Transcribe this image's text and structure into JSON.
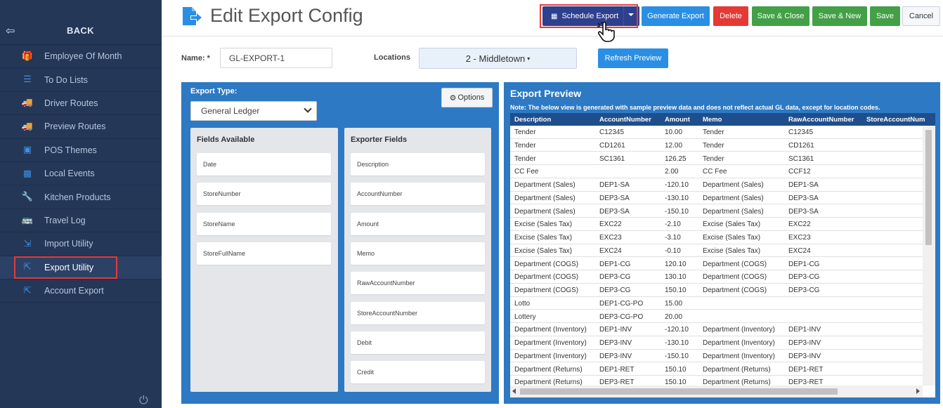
{
  "sidebar": {
    "back_label": "BACK",
    "items": [
      {
        "label": "Employee Of Month",
        "icon": "gift-icon"
      },
      {
        "label": "To Do Lists",
        "icon": "list-icon"
      },
      {
        "label": "Driver Routes",
        "icon": "truck-icon"
      },
      {
        "label": "Preview Routes",
        "icon": "truck-icon"
      },
      {
        "label": "POS Themes",
        "icon": "image-icon"
      },
      {
        "label": "Local Events",
        "icon": "calendar-icon"
      },
      {
        "label": "Kitchen Products",
        "icon": "wrench-icon"
      },
      {
        "label": "Travel Log",
        "icon": "bus-icon"
      },
      {
        "label": "Import Utility",
        "icon": "import-icon"
      },
      {
        "label": "Export Utility",
        "icon": "export-icon"
      },
      {
        "label": "Account Export",
        "icon": "export-icon"
      }
    ]
  },
  "header": {
    "title": "Edit Export Config",
    "schedule_label": "Schedule Export",
    "generate_label": "Generate Export",
    "delete_label": "Delete",
    "save_close_label": "Save & Close",
    "save_new_label": "Save & New",
    "save_label": "Save",
    "cancel_label": "Cancel"
  },
  "form": {
    "name_label": "Name: *",
    "name_value": "GL-EXPORT-1",
    "locations_label": "Locations",
    "location_value": "2 - Middletown",
    "refresh_label": "Refresh Preview"
  },
  "config": {
    "export_type_label": "Export Type:",
    "export_type_value": "General Ledger",
    "options_label": "Options",
    "fields_available_label": "Fields Available",
    "fields_available": [
      "Date",
      "StoreNumber",
      "StoreName",
      "StoreFullName"
    ],
    "exporter_fields_label": "Exporter Fields",
    "exporter_fields": [
      "Description",
      "AccountNumber",
      "Amount",
      "Memo",
      "RawAccountNumber",
      "StoreAccountNumber",
      "Debit",
      "Credit"
    ]
  },
  "preview": {
    "title": "Export Preview",
    "note_prefix": "Note:",
    "note_text": " The below view is generated with sample preview data and does not reflect actual GL data, except for location codes.",
    "columns": [
      "Description",
      "AccountNumber",
      "Amount",
      "Memo",
      "RawAccountNumber",
      "StoreAccountNum"
    ],
    "rows": [
      [
        "Tender",
        "C12345",
        "10.00",
        "Tender",
        "C12345",
        ""
      ],
      [
        "Tender",
        "CD1261",
        "12.00",
        "Tender",
        "CD1261",
        ""
      ],
      [
        "Tender",
        "SC1361",
        "126.25",
        "Tender",
        "SC1361",
        ""
      ],
      [
        "CC Fee",
        "",
        "2.00",
        "CC Fee",
        "CCF12",
        ""
      ],
      [
        "Department (Sales)",
        "DEP1-SA",
        "-120.10",
        "Department (Sales)",
        "DEP1-SA",
        ""
      ],
      [
        "Department (Sales)",
        "DEP3-SA",
        "-130.10",
        "Department (Sales)",
        "DEP3-SA",
        ""
      ],
      [
        "Department (Sales)",
        "DEP3-SA",
        "-150.10",
        "Department (Sales)",
        "DEP3-SA",
        ""
      ],
      [
        "Excise (Sales Tax)",
        "EXC22",
        "-2.10",
        "Excise (Sales Tax)",
        "EXC22",
        ""
      ],
      [
        "Excise (Sales Tax)",
        "EXC23",
        "-3.10",
        "Excise (Sales Tax)",
        "EXC23",
        ""
      ],
      [
        "Excise (Sales Tax)",
        "EXC24",
        "-0.10",
        "Excise (Sales Tax)",
        "EXC24",
        ""
      ],
      [
        "Department (COGS)",
        "DEP1-CG",
        "120.10",
        "Department (COGS)",
        "DEP1-CG",
        ""
      ],
      [
        "Department (COGS)",
        "DEP3-CG",
        "130.10",
        "Department (COGS)",
        "DEP3-CG",
        ""
      ],
      [
        "Department (COGS)",
        "DEP3-CG",
        "150.10",
        "Department (COGS)",
        "DEP3-CG",
        ""
      ],
      [
        "Lotto",
        "DEP1-CG-PO",
        "15.00",
        "",
        "",
        ""
      ],
      [
        "Lottery",
        "DEP3-CG-PO",
        "20.00",
        "",
        "",
        ""
      ],
      [
        "Department (Inventory)",
        "DEP1-INV",
        "-120.10",
        "Department (Inventory)",
        "DEP1-INV",
        ""
      ],
      [
        "Department (Inventory)",
        "DEP3-INV",
        "-130.10",
        "Department (Inventory)",
        "DEP3-INV",
        ""
      ],
      [
        "Department (Inventory)",
        "DEP3-INV",
        "-150.10",
        "Department (Inventory)",
        "DEP3-INV",
        ""
      ],
      [
        "Department (Returns)",
        "DEP1-RET",
        "150.10",
        "Department (Returns)",
        "DEP1-RET",
        ""
      ],
      [
        "Department (Returns)",
        "DEP3-RET",
        "150.10",
        "Department (Returns)",
        "DEP3-RET",
        ""
      ]
    ]
  },
  "colors": {
    "sidebar_bg": "#243757",
    "accent_blue": "#2a8fe4",
    "schedule_bg": "#2e3f8d",
    "delete_red": "#e53935",
    "save_green": "#43a047",
    "panel_blue": "#2d79c3",
    "highlight_red": "#e23b3b"
  }
}
